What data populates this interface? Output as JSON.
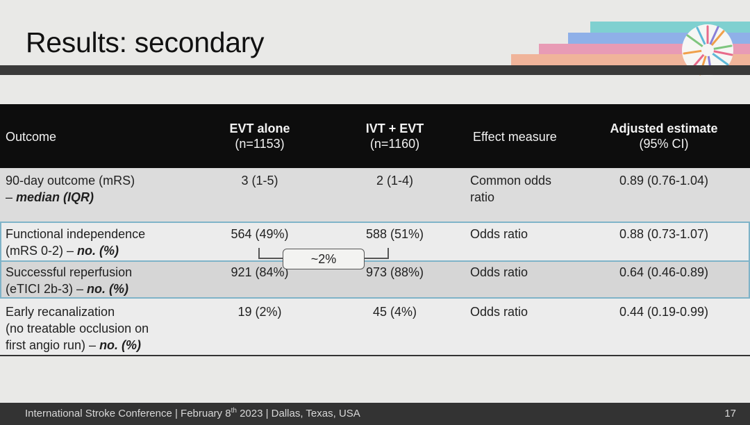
{
  "slide": {
    "title": "Results: secondary",
    "colors": {
      "header_bg": "#0d0d0d",
      "title_bar": "#3a3a3a",
      "row_highlight_border": "#7fb3c8",
      "deco_stripes": [
        "#7fd0d0",
        "#8fb0e8",
        "#e89bb5",
        "#f0b49a"
      ]
    }
  },
  "table": {
    "headers": {
      "outcome": "Outcome",
      "evt_alone": "EVT alone",
      "evt_alone_n": "(n=1153)",
      "ivt_evt": "IVT + EVT",
      "ivt_evt_n": "(n=1160)",
      "effect": "Effect measure",
      "estimate": "Adjusted estimate",
      "estimate_ci": "(95% CI)"
    },
    "rows": [
      {
        "outcome_line1": "90-day outcome (mRS)",
        "outcome_prefix2": "– ",
        "outcome_em": "median (IQR)",
        "evt": "3 (1-5)",
        "ivt": "2 (1-4)",
        "effect_line1": "Common odds",
        "effect_line2": "ratio",
        "estimate": "0.89 (0.76-1.04)"
      },
      {
        "outcome_line1": "Functional independence",
        "outcome_prefix2": "(mRS 0-2) – ",
        "outcome_em": "no. (%)",
        "evt": "564 (49%)",
        "ivt": "588 (51%)",
        "effect_line1": "Odds ratio",
        "estimate": "0.88 (0.73-1.07)"
      },
      {
        "outcome_line1": "Successful reperfusion",
        "outcome_prefix2": "(eTICI 2b-3) – ",
        "outcome_em": "no. (%)",
        "evt": "921 (84%)",
        "ivt": "973 (88%)",
        "effect_line1": "Odds ratio",
        "estimate": "0.64 (0.46-0.89)"
      },
      {
        "outcome_line1": "Early recanalization",
        "outcome_line2": "(no treatable occlusion on",
        "outcome_prefix3": "first angio run) – ",
        "outcome_em": "no. (%)",
        "evt": "19 (2%)",
        "ivt": "45 (4%)",
        "effect_line1": "Odds ratio",
        "estimate": "0.44 (0.19-0.99)"
      }
    ],
    "difference_label": "~2%"
  },
  "footer": {
    "conference": "International Stroke Conference | February 8",
    "sup": "th",
    "rest": " 2023 | Dallas, Texas, USA",
    "page": "17"
  }
}
